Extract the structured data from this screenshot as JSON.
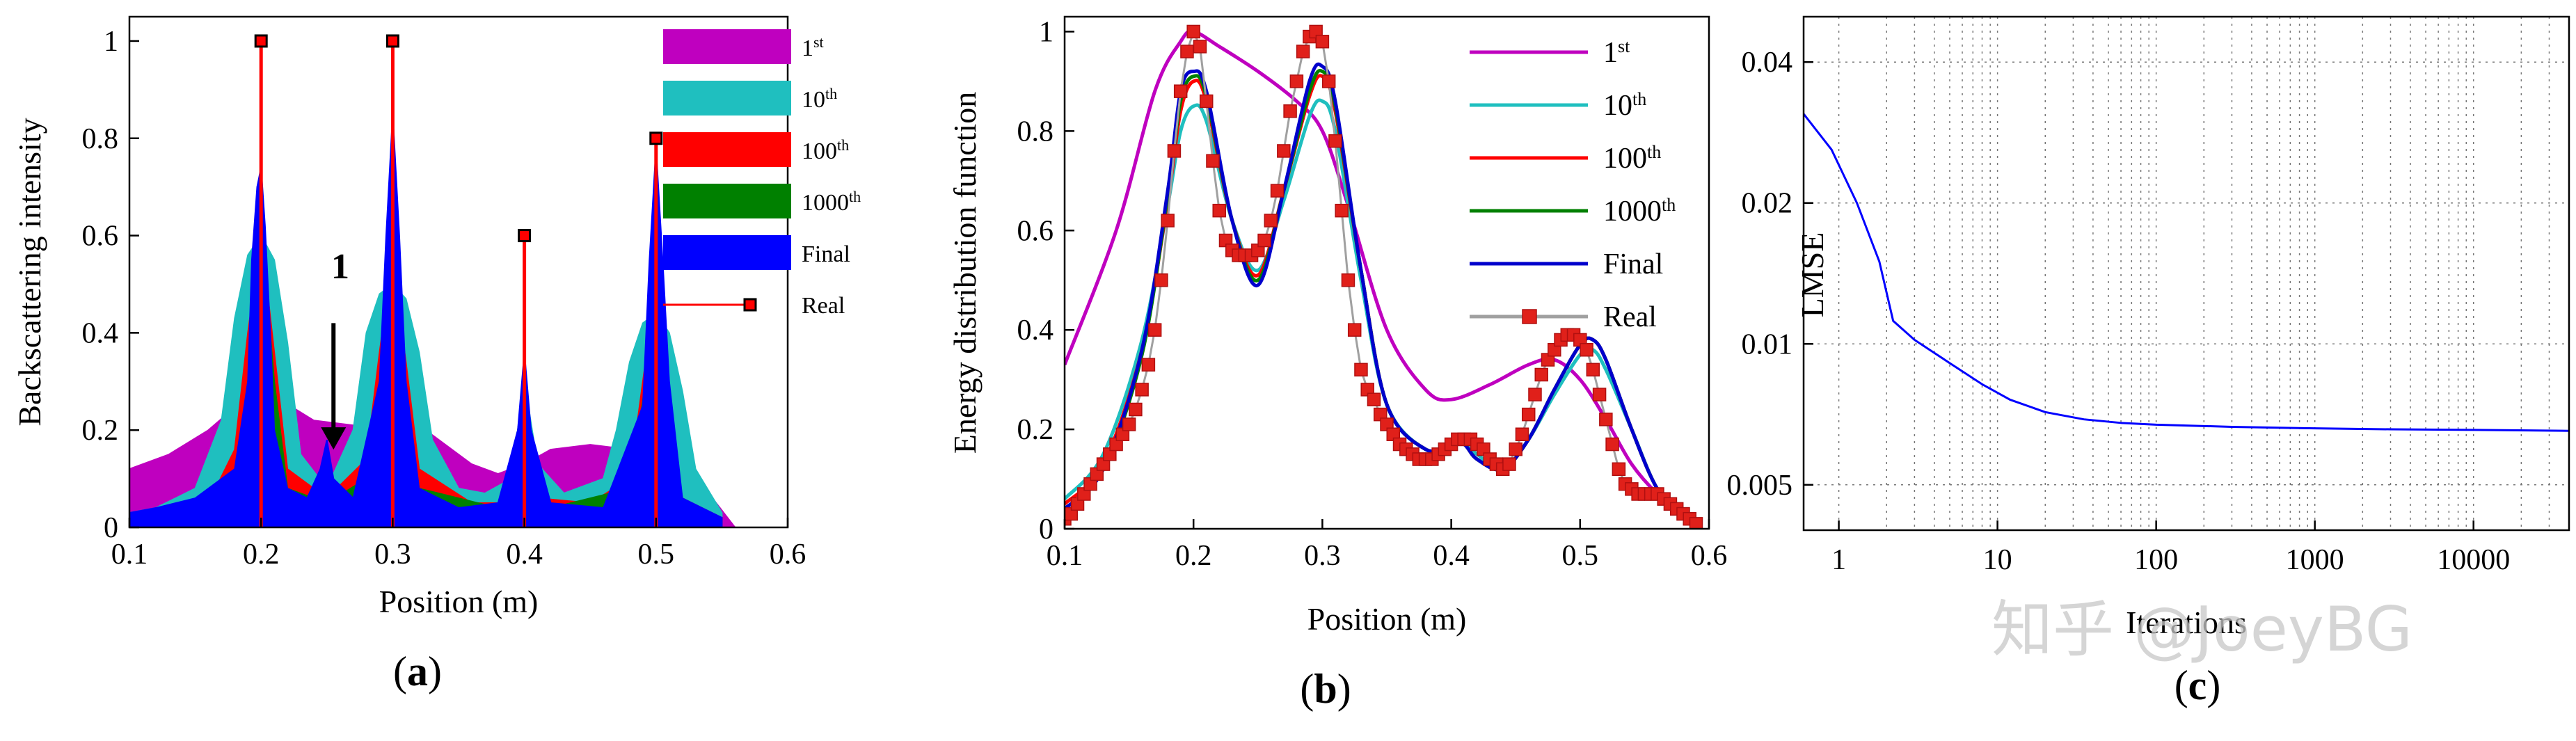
{
  "figure": {
    "watermark": "知乎 @JoeyBG"
  },
  "chart_data": [
    {
      "id": "a",
      "type": "area",
      "panel_label": "a",
      "xlabel": "Position (m)",
      "ylabel": "Backscattering intensity",
      "xlim": [
        0.1,
        0.6
      ],
      "ylim": [
        0,
        1.05
      ],
      "xticks": [
        "0.1",
        "0.2",
        "0.3",
        "0.4",
        "0.5",
        "0.6"
      ],
      "yticks": [
        "0",
        "0.2",
        "0.4",
        "0.6",
        "0.8",
        "1"
      ],
      "legend_position": "top-right",
      "annotation": {
        "text": "1",
        "x": 0.255,
        "y_from": 0.42,
        "y_to": 0.16
      },
      "series": [
        {
          "name": "1",
          "sup": "st",
          "color": "#bf00bf",
          "style": "fill",
          "x": [
            0.1,
            0.13,
            0.16,
            0.19,
            0.2,
            0.21,
            0.24,
            0.27,
            0.3,
            0.33,
            0.36,
            0.38,
            0.4,
            0.42,
            0.45,
            0.48,
            0.5,
            0.52,
            0.54,
            0.56
          ],
          "y": [
            0.12,
            0.15,
            0.2,
            0.27,
            0.28,
            0.27,
            0.22,
            0.21,
            0.22,
            0.19,
            0.13,
            0.11,
            0.13,
            0.16,
            0.17,
            0.16,
            0.14,
            0.11,
            0.07,
            0.0
          ]
        },
        {
          "name": "10",
          "sup": "th",
          "color": "#1fbfbf",
          "style": "fill",
          "x": [
            0.1,
            0.12,
            0.15,
            0.17,
            0.18,
            0.19,
            0.2,
            0.21,
            0.22,
            0.23,
            0.25,
            0.27,
            0.28,
            0.29,
            0.3,
            0.31,
            0.32,
            0.33,
            0.35,
            0.37,
            0.39,
            0.4,
            0.41,
            0.43,
            0.46,
            0.47,
            0.48,
            0.49,
            0.5,
            0.51,
            0.52,
            0.53,
            0.55
          ],
          "y": [
            0.03,
            0.04,
            0.08,
            0.22,
            0.43,
            0.56,
            0.6,
            0.55,
            0.38,
            0.15,
            0.08,
            0.2,
            0.4,
            0.48,
            0.5,
            0.47,
            0.36,
            0.18,
            0.08,
            0.07,
            0.1,
            0.3,
            0.13,
            0.07,
            0.1,
            0.2,
            0.34,
            0.42,
            0.44,
            0.4,
            0.28,
            0.12,
            0.03
          ]
        },
        {
          "name": "100",
          "sup": "th",
          "color": "#ff0000",
          "style": "fill",
          "x": [
            0.1,
            0.12,
            0.16,
            0.18,
            0.19,
            0.195,
            0.2,
            0.205,
            0.21,
            0.22,
            0.25,
            0.28,
            0.29,
            0.295,
            0.3,
            0.305,
            0.31,
            0.32,
            0.36,
            0.39,
            0.4,
            0.41,
            0.45,
            0.48,
            0.49,
            0.495,
            0.5,
            0.505,
            0.51,
            0.52,
            0.55
          ],
          "y": [
            0.02,
            0.03,
            0.05,
            0.16,
            0.4,
            0.5,
            0.52,
            0.48,
            0.36,
            0.12,
            0.06,
            0.14,
            0.36,
            0.46,
            0.48,
            0.44,
            0.34,
            0.12,
            0.05,
            0.05,
            0.28,
            0.06,
            0.05,
            0.1,
            0.3,
            0.4,
            0.42,
            0.36,
            0.24,
            0.06,
            0.02
          ]
        },
        {
          "name": "1000",
          "sup": "th",
          "color": "#008000",
          "style": "fill",
          "x": [
            0.1,
            0.15,
            0.18,
            0.19,
            0.195,
            0.2,
            0.205,
            0.21,
            0.22,
            0.25,
            0.28,
            0.29,
            0.295,
            0.3,
            0.305,
            0.31,
            0.32,
            0.38,
            0.395,
            0.4,
            0.405,
            0.42,
            0.48,
            0.49,
            0.495,
            0.5,
            0.505,
            0.51,
            0.52,
            0.55
          ],
          "y": [
            0.02,
            0.04,
            0.1,
            0.3,
            0.46,
            0.5,
            0.46,
            0.3,
            0.08,
            0.05,
            0.1,
            0.3,
            0.44,
            0.46,
            0.42,
            0.28,
            0.08,
            0.04,
            0.2,
            0.3,
            0.2,
            0.04,
            0.08,
            0.26,
            0.38,
            0.4,
            0.34,
            0.2,
            0.05,
            0.02
          ]
        },
        {
          "name": "Final",
          "sup": "",
          "color": "#0000ff",
          "style": "fill",
          "x": [
            0.1,
            0.12,
            0.15,
            0.18,
            0.19,
            0.193,
            0.197,
            0.2,
            0.203,
            0.207,
            0.21,
            0.22,
            0.235,
            0.245,
            0.25,
            0.255,
            0.27,
            0.29,
            0.295,
            0.3,
            0.305,
            0.31,
            0.32,
            0.35,
            0.38,
            0.395,
            0.4,
            0.405,
            0.42,
            0.46,
            0.49,
            0.495,
            0.5,
            0.505,
            0.51,
            0.52,
            0.55
          ],
          "y": [
            0.03,
            0.04,
            0.06,
            0.12,
            0.3,
            0.55,
            0.7,
            0.74,
            0.62,
            0.4,
            0.2,
            0.08,
            0.06,
            0.12,
            0.18,
            0.1,
            0.06,
            0.3,
            0.6,
            0.85,
            0.6,
            0.3,
            0.08,
            0.04,
            0.05,
            0.2,
            0.36,
            0.2,
            0.05,
            0.04,
            0.25,
            0.55,
            0.78,
            0.55,
            0.3,
            0.06,
            0.02
          ]
        },
        {
          "name": "Real",
          "sup": "",
          "color": "#ff0000",
          "style": "stem",
          "x": [
            0.2,
            0.3,
            0.4,
            0.5
          ],
          "y": [
            1.0,
            1.0,
            0.6,
            0.8
          ]
        }
      ]
    },
    {
      "id": "b",
      "type": "line",
      "panel_label": "b",
      "xlabel": "Position (m)",
      "ylabel": "Energy distribution function",
      "xlim": [
        0.1,
        0.6
      ],
      "ylim": [
        0,
        1.03
      ],
      "xticks": [
        "0.1",
        "0.2",
        "0.3",
        "0.4",
        "0.5",
        "0.6"
      ],
      "yticks": [
        "0",
        "0.2",
        "0.4",
        "0.6",
        "0.8",
        "1"
      ],
      "legend_position": "top-right",
      "series": [
        {
          "name": "1",
          "sup": "st",
          "color": "#bf00bf",
          "x": [
            0.1,
            0.14,
            0.17,
            0.19,
            0.2,
            0.22,
            0.25,
            0.28,
            0.3,
            0.32,
            0.35,
            0.38,
            0.4,
            0.43,
            0.46,
            0.48,
            0.5,
            0.52,
            0.54,
            0.56,
            0.58,
            0.59
          ],
          "y": [
            0.33,
            0.6,
            0.88,
            0.98,
            1.0,
            0.97,
            0.92,
            0.86,
            0.8,
            0.65,
            0.4,
            0.28,
            0.26,
            0.29,
            0.33,
            0.34,
            0.3,
            0.22,
            0.13,
            0.07,
            0.03,
            0.02
          ]
        },
        {
          "name": "10",
          "sup": "th",
          "color": "#1fbfbf",
          "x": [
            0.1,
            0.13,
            0.16,
            0.18,
            0.19,
            0.2,
            0.21,
            0.23,
            0.25,
            0.27,
            0.29,
            0.3,
            0.31,
            0.33,
            0.35,
            0.38,
            0.4,
            0.41,
            0.42,
            0.44,
            0.46,
            0.48,
            0.5,
            0.51,
            0.52,
            0.54,
            0.56,
            0.58,
            0.59
          ],
          "y": [
            0.06,
            0.15,
            0.38,
            0.65,
            0.8,
            0.85,
            0.82,
            0.62,
            0.52,
            0.66,
            0.83,
            0.86,
            0.8,
            0.5,
            0.25,
            0.16,
            0.17,
            0.17,
            0.15,
            0.12,
            0.18,
            0.27,
            0.35,
            0.36,
            0.32,
            0.2,
            0.08,
            0.03,
            0.02
          ]
        },
        {
          "name": "100",
          "sup": "th",
          "color": "#ff0000",
          "x": [
            0.1,
            0.13,
            0.16,
            0.18,
            0.19,
            0.2,
            0.21,
            0.23,
            0.25,
            0.27,
            0.29,
            0.3,
            0.31,
            0.33,
            0.35,
            0.38,
            0.4,
            0.41,
            0.42,
            0.44,
            0.46,
            0.48,
            0.5,
            0.51,
            0.52,
            0.54,
            0.56,
            0.58,
            0.59
          ],
          "y": [
            0.05,
            0.13,
            0.36,
            0.66,
            0.84,
            0.9,
            0.86,
            0.62,
            0.51,
            0.68,
            0.87,
            0.91,
            0.84,
            0.52,
            0.25,
            0.16,
            0.17,
            0.17,
            0.14,
            0.12,
            0.18,
            0.28,
            0.37,
            0.38,
            0.34,
            0.2,
            0.08,
            0.03,
            0.01
          ]
        },
        {
          "name": "1000",
          "sup": "th",
          "color": "#008000",
          "x": [
            0.1,
            0.13,
            0.16,
            0.18,
            0.19,
            0.2,
            0.21,
            0.23,
            0.25,
            0.27,
            0.29,
            0.3,
            0.31,
            0.33,
            0.35,
            0.38,
            0.4,
            0.41,
            0.42,
            0.44,
            0.46,
            0.48,
            0.5,
            0.51,
            0.52,
            0.54,
            0.56,
            0.58,
            0.59
          ],
          "y": [
            0.04,
            0.12,
            0.35,
            0.67,
            0.86,
            0.91,
            0.87,
            0.62,
            0.5,
            0.68,
            0.88,
            0.92,
            0.85,
            0.52,
            0.25,
            0.16,
            0.17,
            0.17,
            0.14,
            0.12,
            0.18,
            0.28,
            0.37,
            0.38,
            0.34,
            0.2,
            0.08,
            0.03,
            0.01
          ]
        },
        {
          "name": "Final",
          "sup": "",
          "color": "#0000cc",
          "x": [
            0.1,
            0.13,
            0.16,
            0.18,
            0.19,
            0.2,
            0.21,
            0.23,
            0.25,
            0.27,
            0.29,
            0.3,
            0.31,
            0.33,
            0.35,
            0.38,
            0.4,
            0.41,
            0.42,
            0.44,
            0.46,
            0.48,
            0.5,
            0.51,
            0.52,
            0.54,
            0.56,
            0.58,
            0.59
          ],
          "y": [
            0.04,
            0.12,
            0.36,
            0.68,
            0.88,
            0.92,
            0.88,
            0.62,
            0.49,
            0.68,
            0.9,
            0.93,
            0.86,
            0.52,
            0.25,
            0.16,
            0.17,
            0.17,
            0.14,
            0.12,
            0.18,
            0.28,
            0.37,
            0.38,
            0.34,
            0.2,
            0.08,
            0.03,
            0.01
          ]
        },
        {
          "name": "Real",
          "sup": "",
          "color": "#e0201a",
          "line_color": "#a0a0a0",
          "marker": "square",
          "x": [
            0.1,
            0.105,
            0.11,
            0.115,
            0.12,
            0.125,
            0.13,
            0.135,
            0.14,
            0.145,
            0.15,
            0.155,
            0.16,
            0.165,
            0.17,
            0.175,
            0.18,
            0.185,
            0.19,
            0.195,
            0.2,
            0.205,
            0.21,
            0.215,
            0.22,
            0.225,
            0.23,
            0.235,
            0.24,
            0.245,
            0.25,
            0.255,
            0.26,
            0.265,
            0.27,
            0.275,
            0.28,
            0.285,
            0.29,
            0.295,
            0.3,
            0.305,
            0.31,
            0.315,
            0.32,
            0.325,
            0.33,
            0.335,
            0.34,
            0.345,
            0.35,
            0.355,
            0.36,
            0.365,
            0.37,
            0.375,
            0.38,
            0.385,
            0.39,
            0.395,
            0.4,
            0.405,
            0.41,
            0.415,
            0.42,
            0.425,
            0.43,
            0.435,
            0.44,
            0.445,
            0.45,
            0.455,
            0.46,
            0.465,
            0.47,
            0.475,
            0.48,
            0.485,
            0.49,
            0.495,
            0.5,
            0.505,
            0.51,
            0.515,
            0.52,
            0.525,
            0.53,
            0.535,
            0.54,
            0.545,
            0.55,
            0.555,
            0.56,
            0.565,
            0.57,
            0.575,
            0.58,
            0.585,
            0.59
          ],
          "y": [
            0.02,
            0.03,
            0.05,
            0.07,
            0.09,
            0.11,
            0.13,
            0.15,
            0.17,
            0.19,
            0.21,
            0.24,
            0.28,
            0.33,
            0.4,
            0.5,
            0.62,
            0.76,
            0.88,
            0.96,
            1.0,
            0.97,
            0.86,
            0.74,
            0.64,
            0.58,
            0.56,
            0.55,
            0.55,
            0.55,
            0.56,
            0.58,
            0.62,
            0.68,
            0.76,
            0.84,
            0.9,
            0.96,
            0.99,
            1.0,
            0.98,
            0.9,
            0.78,
            0.64,
            0.5,
            0.4,
            0.32,
            0.28,
            0.26,
            0.23,
            0.21,
            0.19,
            0.17,
            0.16,
            0.15,
            0.14,
            0.14,
            0.14,
            0.15,
            0.16,
            0.17,
            0.18,
            0.18,
            0.18,
            0.17,
            0.16,
            0.14,
            0.13,
            0.12,
            0.13,
            0.16,
            0.19,
            0.23,
            0.27,
            0.31,
            0.34,
            0.36,
            0.38,
            0.39,
            0.39,
            0.38,
            0.36,
            0.32,
            0.27,
            0.22,
            0.17,
            0.12,
            0.09,
            0.08,
            0.07,
            0.07,
            0.07,
            0.07,
            0.06,
            0.05,
            0.04,
            0.03,
            0.02,
            0.01
          ]
        }
      ]
    },
    {
      "id": "c",
      "type": "line",
      "panel_label": "c",
      "xlabel": "Iterations",
      "ylabel": "LMSE",
      "xscale": "log",
      "yscale": "log",
      "xlim": [
        0.6,
        40000
      ],
      "ylim": [
        0.004,
        0.05
      ],
      "xticks": [
        1,
        10,
        100,
        1000,
        10000
      ],
      "xtick_labels": [
        "1",
        "10",
        "100",
        "1000",
        "10000"
      ],
      "yticks": [
        0.005,
        0.01,
        0.02,
        0.04
      ],
      "ytick_labels": [
        "0.005",
        "0.01",
        "0.02",
        "0.04"
      ],
      "grid": true,
      "series": [
        {
          "name": "LMSE",
          "color": "#0000ff",
          "x": [
            0.6,
            0.9,
            1.3,
            1.8,
            2.2,
            3,
            5,
            8,
            12,
            20,
            35,
            60,
            100,
            300,
            1000,
            3000,
            10000,
            40000
          ],
          "y": [
            0.031,
            0.026,
            0.02,
            0.015,
            0.0112,
            0.0102,
            0.0091,
            0.0082,
            0.0076,
            0.00715,
            0.0069,
            0.00678,
            0.00672,
            0.00665,
            0.0066,
            0.00657,
            0.00655,
            0.00652
          ]
        }
      ]
    }
  ]
}
